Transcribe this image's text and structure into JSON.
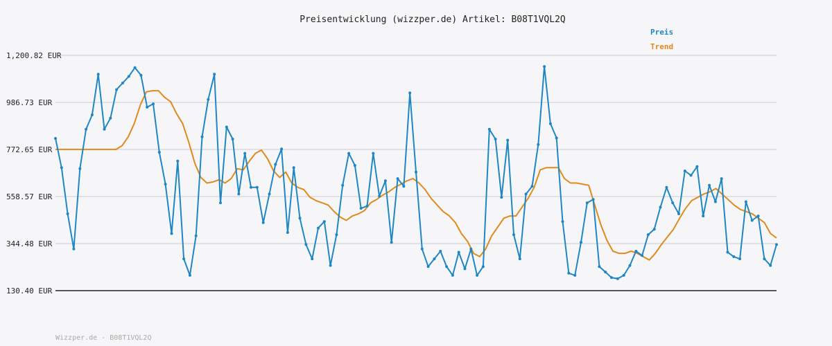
{
  "chart_data": {
    "type": "line",
    "title": "Preisentwicklung (wizzper.de) Artikel: B08T1VQL2Q",
    "footer": "Wizzper.de - B08T1VQL2Q",
    "ytick_labels": [
      "1,200.82 EUR",
      "986.73 EUR",
      "772.65 EUR",
      "558.57 EUR",
      "344.48 EUR",
      "130.40 EUR"
    ],
    "ylim": [
      130.4,
      1200.82
    ],
    "grid": true,
    "legend": "top-right",
    "colors": {
      "preis": "#1f86c4",
      "trend": "#e08a1e",
      "grid": "#e0e0e6",
      "axis": "#555555"
    },
    "series": [
      {
        "name": "Preis",
        "values": [
          823,
          690,
          480,
          320,
          685,
          865,
          930,
          1115,
          865,
          915,
          1045,
          1075,
          1105,
          1145,
          1110,
          965,
          980,
          760,
          615,
          390,
          720,
          275,
          200,
          380,
          830,
          1000,
          1115,
          530,
          875,
          820,
          570,
          755,
          600,
          600,
          440,
          570,
          705,
          775,
          395,
          690,
          460,
          340,
          275,
          415,
          445,
          245,
          385,
          610,
          755,
          700,
          505,
          515,
          755,
          560,
          630,
          350,
          640,
          605,
          1030,
          670,
          320,
          240,
          275,
          310,
          240,
          200,
          305,
          230,
          320,
          200,
          240,
          865,
          820,
          555,
          815,
          385,
          275,
          570,
          605,
          795,
          1150,
          890,
          825,
          445,
          210,
          200,
          350,
          530,
          545,
          240,
          215,
          190,
          185,
          200,
          245,
          310,
          290,
          385,
          410,
          510,
          600,
          530,
          480,
          675,
          655,
          695,
          470,
          610,
          535,
          640,
          305,
          285,
          275,
          535,
          450,
          470,
          275,
          245,
          340
        ]
      },
      {
        "name": "Trend",
        "values": [
          773,
          773,
          773,
          773,
          773,
          773,
          773,
          773,
          773,
          773,
          773,
          790,
          830,
          890,
          975,
          1035,
          1040,
          1040,
          1010,
          990,
          935,
          890,
          805,
          710,
          645,
          620,
          625,
          635,
          620,
          640,
          685,
          680,
          720,
          755,
          770,
          730,
          675,
          645,
          670,
          620,
          600,
          590,
          555,
          540,
          530,
          520,
          490,
          465,
          450,
          470,
          480,
          495,
          530,
          545,
          565,
          580,
          600,
          615,
          630,
          640,
          620,
          590,
          550,
          520,
          490,
          470,
          440,
          390,
          355,
          300,
          285,
          320,
          380,
          420,
          460,
          470,
          470,
          510,
          550,
          600,
          680,
          690,
          690,
          690,
          640,
          620,
          620,
          615,
          610,
          520,
          430,
          360,
          310,
          300,
          300,
          310,
          300,
          285,
          270,
          300,
          340,
          375,
          410,
          460,
          505,
          540,
          555,
          570,
          580,
          595,
          570,
          545,
          520,
          500,
          490,
          480,
          460,
          440,
          390,
          370
        ]
      }
    ]
  }
}
